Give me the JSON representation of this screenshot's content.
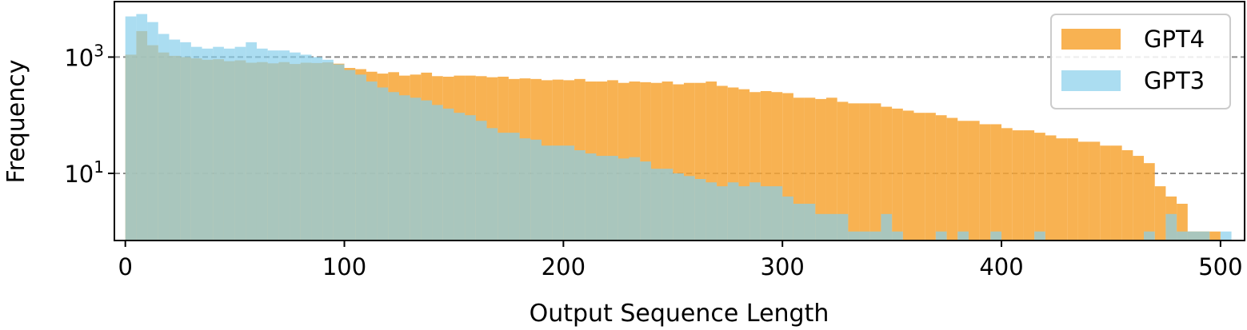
{
  "chart_data": {
    "type": "bar",
    "subtype": "overlaid-histogram",
    "xlabel": "Output Sequence Length",
    "ylabel": "Frequency",
    "xlim": [
      -5,
      511
    ],
    "xticks": [
      0,
      100,
      200,
      300,
      400,
      500
    ],
    "yscale": "log",
    "ylim": [
      0.7,
      9000
    ],
    "yticks": [
      {
        "value": 10,
        "base": "10",
        "exp": "1"
      },
      {
        "value": 1000,
        "base": "10",
        "exp": "3"
      }
    ],
    "grid": "horizontal dashed at major y ticks",
    "legend_position": "top-right",
    "bin_width": 5,
    "bin_start": 0,
    "series": [
      {
        "name": "GPT4",
        "color": "#f7a534",
        "values": [
          1100,
          2800,
          1600,
          1200,
          1050,
          1000,
          950,
          900,
          920,
          850,
          880,
          800,
          820,
          780,
          820,
          760,
          800,
          790,
          810,
          770,
          650,
          620,
          560,
          520,
          550,
          480,
          500,
          540,
          470,
          460,
          480,
          480,
          470,
          450,
          460,
          420,
          430,
          420,
          400,
          410,
          400,
          420,
          380,
          380,
          400,
          360,
          380,
          370,
          360,
          380,
          340,
          360,
          360,
          380,
          320,
          300,
          280,
          250,
          260,
          250,
          240,
          200,
          200,
          190,
          200,
          170,
          160,
          160,
          160,
          140,
          130,
          120,
          110,
          110,
          100,
          90,
          80,
          80,
          70,
          70,
          60,
          55,
          55,
          50,
          45,
          40,
          40,
          35,
          35,
          30,
          30,
          25,
          20,
          15,
          6,
          4,
          3,
          1,
          1,
          1
        ]
      },
      {
        "name": "GPT3",
        "color": "#87ceeb",
        "values": [
          5000,
          5500,
          4000,
          2500,
          2000,
          1800,
          1500,
          1400,
          1500,
          1400,
          1500,
          1800,
          1400,
          1300,
          1300,
          1200,
          1100,
          1000,
          900,
          750,
          600,
          500,
          380,
          300,
          250,
          220,
          200,
          180,
          150,
          130,
          110,
          100,
          80,
          60,
          50,
          50,
          40,
          38,
          30,
          30,
          30,
          25,
          22,
          20,
          20,
          18,
          19,
          16,
          12,
          12,
          10,
          9,
          8,
          7,
          6,
          7,
          6,
          7,
          6,
          6,
          4,
          3,
          3,
          2,
          2,
          2,
          1,
          1,
          1,
          2,
          1,
          0,
          0,
          0,
          1,
          0,
          1,
          0,
          0,
          1,
          0,
          0,
          0,
          1,
          0,
          0,
          0,
          0,
          0,
          0,
          0,
          0,
          0,
          1,
          0,
          2,
          1,
          1,
          1,
          0,
          1
        ]
      }
    ]
  }
}
